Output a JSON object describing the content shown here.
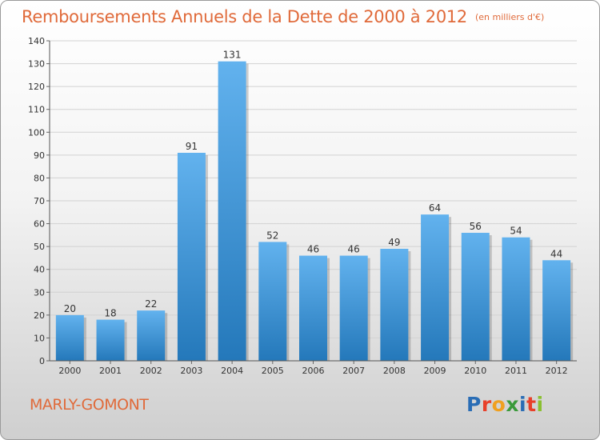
{
  "header": {
    "title": "Remboursements Annuels de la Dette de 2000 à 2012",
    "subtitle": "(en milliers d'€)"
  },
  "footer": {
    "commune": "MARLY-GOMONT",
    "logo_letters": [
      "P",
      "r",
      "o",
      "x",
      "i",
      "t",
      "i"
    ],
    "logo_colors": [
      "#2a6db5",
      "#e8402a",
      "#f0a020",
      "#3a9a3a",
      "#2a6db5",
      "#e8402a",
      "#8ac030"
    ]
  },
  "chart_data": {
    "type": "bar",
    "title": "Remboursements Annuels de la Dette de 2000 à 2012",
    "subtitle": "(en milliers d'€)",
    "xlabel": "",
    "ylabel": "",
    "categories": [
      "2000",
      "2001",
      "2002",
      "2003",
      "2004",
      "2005",
      "2006",
      "2007",
      "2008",
      "2009",
      "2010",
      "2011",
      "2012"
    ],
    "values": [
      20,
      18,
      22,
      91,
      131,
      52,
      46,
      46,
      49,
      64,
      56,
      54,
      44
    ],
    "data_labels": [
      "20",
      "18",
      "22",
      "91",
      "131",
      "52",
      "46",
      "46",
      "49",
      "64",
      "56",
      "54",
      "44"
    ],
    "ylim": [
      0,
      140
    ],
    "yticks": [
      0,
      10,
      20,
      30,
      40,
      50,
      60,
      70,
      80,
      90,
      100,
      110,
      120,
      130,
      140
    ],
    "grid": true,
    "legend": "none",
    "bar_color_top": "#62b2ee",
    "bar_color_bottom": "#2478ba"
  }
}
